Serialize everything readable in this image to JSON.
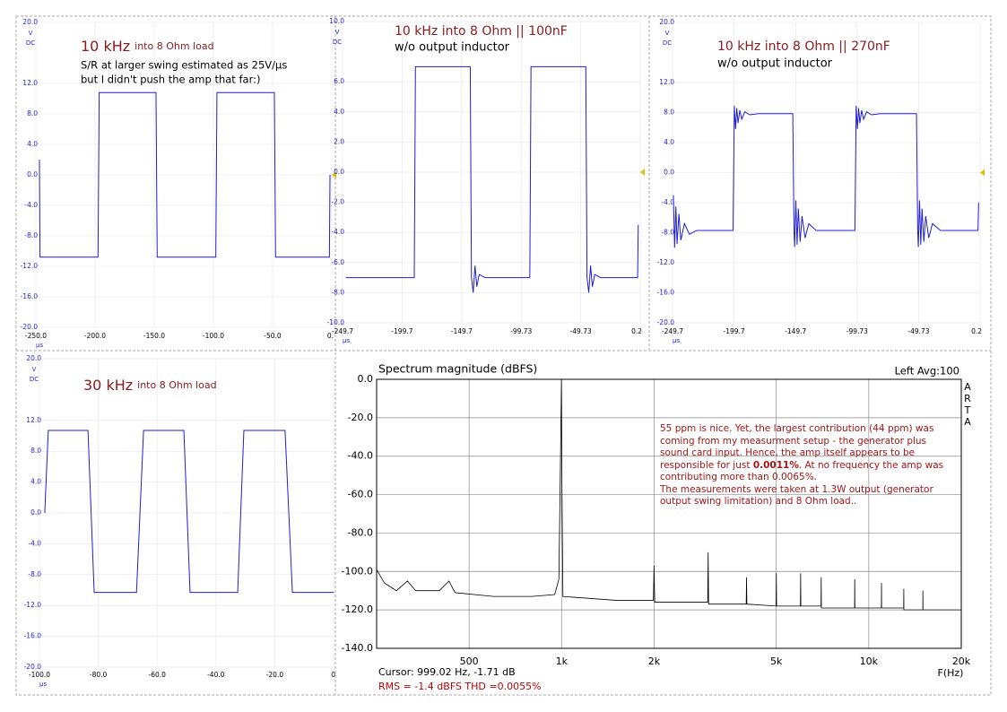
{
  "chart_data": [
    {
      "type": "line",
      "title": [
        "10 kHz",
        "into 8 Ohm load"
      ],
      "subtitle": [
        "S/R at larger swing estimated as 25V/µs",
        "but I didn't push the amp that far:)"
      ],
      "y_unit": [
        "V",
        "DC"
      ],
      "x_unit": "µs",
      "xlim": [
        -250,
        0
      ],
      "ylim": [
        -20,
        20
      ],
      "xticks": [
        {
          "value": -250,
          "label": "-250.0"
        },
        {
          "value": -200,
          "label": "-200.0"
        },
        {
          "value": -150,
          "label": "-150.0"
        },
        {
          "value": -100,
          "label": "-100.0"
        },
        {
          "value": -50,
          "label": "-50.0"
        },
        {
          "value": 0,
          "label": "0."
        }
      ],
      "yticks": [
        {
          "value": 20,
          "label": "20.0"
        },
        {
          "value": 12,
          "label": "12.0"
        },
        {
          "value": 8,
          "label": "8.0"
        },
        {
          "value": 4,
          "label": "4.0"
        },
        {
          "value": 0,
          "label": "0.0"
        },
        {
          "value": -4,
          "label": "-4.0"
        },
        {
          "value": -8,
          "label": "-8.0"
        },
        {
          "value": -12,
          "label": "-12.0"
        },
        {
          "value": -16,
          "label": "-16.0"
        },
        {
          "value": -20,
          "label": "-20.0"
        }
      ],
      "series": [
        {
          "color": "#1f1fd0",
          "x": [
            -247,
            -246.5,
            -197.5,
            -196.5,
            -148.5,
            -147.5,
            -98,
            -97,
            -48.5,
            -47.5,
            -2,
            -1.5
          ],
          "values": [
            2,
            -10.8,
            -10.8,
            10.8,
            10.8,
            -10.8,
            -10.8,
            10.8,
            10.8,
            -10.8,
            -10.8,
            0
          ]
        }
      ]
    },
    {
      "type": "line",
      "title": [
        "10 kHz into 8 Ohm || 100nF"
      ],
      "subtitle": [
        "w/o output inductor"
      ],
      "y_unit": [
        "V",
        "DC"
      ],
      "x_unit": "µs",
      "xlim": [
        -249.7,
        0.2
      ],
      "ylim": [
        -10,
        10
      ],
      "xticks": [
        -249.7,
        -199.7,
        -149.7,
        -99.73,
        -49.73,
        0.2
      ],
      "yticks": [
        {
          "value": 10,
          "label": "10.0"
        },
        {
          "value": 6,
          "label": "6.0"
        },
        {
          "value": 4,
          "label": "4.0"
        },
        {
          "value": 2,
          "label": "2.0"
        },
        {
          "value": 0,
          "label": "0.0"
        },
        {
          "value": -2,
          "label": "-2.0"
        },
        {
          "value": -4,
          "label": "-4.0"
        },
        {
          "value": -6,
          "label": "-6.0"
        },
        {
          "value": -8,
          "label": "-8.0"
        },
        {
          "value": -10,
          "label": "-10.0"
        }
      ],
      "series": [
        {
          "color": "#1f1fd0",
          "x": [
            -247,
            -246,
            -189.5,
            -188.5,
            -142.5,
            -141.5,
            -140,
            -138.5,
            -137,
            -135,
            -130,
            -92.5,
            -91.5,
            -45.5,
            -44.5,
            -43,
            -41.5,
            -40,
            -38,
            -33,
            -2,
            -1.5
          ],
          "values": [
            -7,
            -7,
            -7,
            7,
            7,
            -7,
            -8,
            -6.2,
            -7.6,
            -6.8,
            -7,
            -7,
            7,
            7,
            -7,
            -8,
            -6.2,
            -7.6,
            -6.8,
            -7,
            -7,
            -3.5
          ]
        }
      ]
    },
    {
      "type": "line",
      "title": [
        "10 kHz into 8 Ohm || 270nF"
      ],
      "subtitle": [
        "w/o output inductor"
      ],
      "y_unit": [
        "V",
        "DC"
      ],
      "x_unit": "µs",
      "xlim": [
        -249.7,
        0.2
      ],
      "ylim": [
        -20,
        20
      ],
      "xticks": [
        -249.7,
        -199.7,
        -149.7,
        -99.73,
        -49.73,
        0.2
      ],
      "yticks": [
        {
          "value": 20,
          "label": "20.0"
        },
        {
          "value": 12,
          "label": "12.0"
        },
        {
          "value": 8,
          "label": "8.0"
        },
        {
          "value": 4,
          "label": "4.0"
        },
        {
          "value": 0,
          "label": "0.0"
        },
        {
          "value": -4,
          "label": "-4.0"
        },
        {
          "value": -8,
          "label": "-8.0"
        },
        {
          "value": -12,
          "label": "-12.0"
        },
        {
          "value": -16,
          "label": "-16.0"
        },
        {
          "value": -20,
          "label": "-20.0"
        }
      ],
      "series": [
        {
          "color": "#1f1fd0",
          "x": [
            -249,
            -248,
            -247,
            -246,
            -244.5,
            -243,
            -240,
            -236,
            -230,
            -200.5,
            -199.5,
            -198.5,
            -197.5,
            -196.5,
            -195,
            -193.5,
            -191,
            -187,
            -180,
            -152,
            -151,
            -150.5,
            -149.5,
            -148.5,
            -147.5,
            -146,
            -144.5,
            -142,
            -139,
            -133,
            -101.5,
            -100.5,
            -99.5,
            -98.5,
            -97.5,
            -96,
            -94.5,
            -92,
            -88,
            -81,
            -51.5,
            -50.5,
            -50,
            -49,
            -48,
            -47,
            -45.5,
            -44,
            -41.5,
            -38.5,
            -32,
            -1.5,
            -1
          ],
          "values": [
            -3,
            -10,
            -4.5,
            -9.5,
            -5.5,
            -9,
            -6.8,
            -8.2,
            -7.7,
            -7.7,
            8.9,
            5.8,
            8.6,
            6.6,
            8.3,
            7.1,
            8.1,
            7.7,
            7.85,
            7.85,
            -7.7,
            -9.9,
            -3.7,
            -9.6,
            -4.8,
            -9.2,
            -5.8,
            -8.7,
            -6.8,
            -7.7,
            -7.7,
            8.9,
            5.8,
            8.6,
            6.6,
            8.3,
            7.1,
            8.1,
            7.7,
            7.85,
            7.85,
            -7.7,
            -9.9,
            -3.7,
            -9.6,
            -4.8,
            -9.2,
            -5.8,
            -8.7,
            -6.8,
            -7.7,
            -7.7,
            -4
          ]
        }
      ]
    },
    {
      "type": "line",
      "title": [
        "30 kHz",
        "into 8 Ohm load"
      ],
      "y_unit": [
        "V",
        "DC"
      ],
      "x_unit": "µs",
      "xlim": [
        -100,
        0
      ],
      "ylim": [
        -20,
        20
      ],
      "xticks": [
        {
          "value": -100,
          "label": "-100.0"
        },
        {
          "value": -80,
          "label": "-80.0"
        },
        {
          "value": -60,
          "label": "-60.0"
        },
        {
          "value": -40,
          "label": "-40.0"
        },
        {
          "value": -20,
          "label": "-20.0"
        },
        0
      ],
      "yticks": [
        {
          "value": 20,
          "label": "20.0"
        },
        {
          "value": 12,
          "label": "12.0"
        },
        {
          "value": 8,
          "label": "8.0"
        },
        {
          "value": 4,
          "label": "4.0"
        },
        {
          "value": 0,
          "label": "0.0"
        },
        {
          "value": -4,
          "label": "-4.0"
        },
        {
          "value": -8,
          "label": "-8.0"
        },
        {
          "value": -12,
          "label": "-12.0"
        },
        {
          "value": -16,
          "label": "-16.0"
        },
        {
          "value": -20,
          "label": "-20.0"
        }
      ],
      "series": [
        {
          "color": "#1f1fd0",
          "x": [
            -98.2,
            -97,
            -83.5,
            -81.4,
            -67,
            -64.6,
            -50.9,
            -48.8,
            -32.6,
            -30.5,
            -16.5,
            -14,
            0
          ],
          "values": [
            0,
            10.7,
            10.7,
            -10.3,
            -10.3,
            10.7,
            10.7,
            -10.3,
            -10.3,
            10.7,
            10.7,
            -10.3,
            -10.3
          ]
        }
      ]
    },
    {
      "type": "line",
      "title": [
        "Spectrum magnitude (dBFS)"
      ],
      "legend_text": "Left  Avg:100",
      "side_text": [
        "A",
        "R",
        "T",
        "A"
      ],
      "x_label": "F(Hz)",
      "xscale": "log",
      "grid": true,
      "cursor_text": "Cursor: 999.02 Hz, -1.71 dB",
      "rms_text": "RMS =   -1.4 dBFS  THD =0.0055%",
      "annotation": [
        "55 ppm is nice.  Yet, the largest contribution (44 ppm) was",
        "coming from my measurment setup - the generator plus",
        "sound card input.  Hence, the amp itself appears to be",
        [
          "responsible for just ",
          "0.0011%",
          ".  At no frequency the amp was"
        ],
        "contributing more than 0.0065%.",
        "The measurements were taken at 1.3W output (generator",
        "output swing limitation) and 8 Ohm load.."
      ],
      "xlim": [
        250,
        20000
      ],
      "ylim": [
        -140,
        0
      ],
      "xticks": [
        500,
        {
          "value": 1000,
          "label": "1k"
        },
        {
          "value": 2000,
          "label": "2k"
        },
        {
          "value": 5000,
          "label": "5k"
        },
        {
          "value": 10000,
          "label": "10k"
        },
        {
          "value": 20000,
          "label": "20k"
        }
      ],
      "yticks": [
        {
          "value": 0,
          "label": "0.0"
        },
        {
          "value": -20,
          "label": "-20.0"
        },
        {
          "value": -40,
          "label": "-40.0"
        },
        {
          "value": -60,
          "label": "-60.0"
        },
        {
          "value": -80,
          "label": "-80.0"
        },
        {
          "value": -100,
          "label": "-100.0"
        },
        {
          "value": -120,
          "label": "-120.0"
        },
        {
          "value": -140,
          "label": "-140.0"
        }
      ],
      "series": [
        {
          "color": "#000000",
          "x": [
            250,
            265,
            290,
            315,
            335,
            400,
            430,
            450,
            600,
            800,
            950,
            980,
            995,
            999,
            1003,
            1010,
            1500,
            1990,
            2000,
            2010,
            2990,
            3000,
            3010,
            3990,
            4000,
            4010,
            4990,
            5000,
            5010,
            5990,
            6000,
            6010,
            6990,
            7000,
            7010,
            8990,
            9000,
            9010,
            10990,
            11000,
            11010,
            12990,
            13000,
            13010,
            14990,
            15000,
            15010,
            20000
          ],
          "values": [
            -99,
            -106,
            -110,
            -105,
            -110,
            -110,
            -105,
            -111,
            -113,
            -113,
            -112,
            -104,
            -25,
            0,
            -60,
            -113,
            -115,
            -115,
            -97,
            -116,
            -116,
            -90,
            -117,
            -117,
            -103,
            -117,
            -118,
            -101,
            -118,
            -118,
            -101,
            -118,
            -118,
            -103,
            -119,
            -119,
            -104,
            -119,
            -119,
            -106,
            -119,
            -119,
            -109,
            -120,
            -120,
            -110,
            -120,
            -120
          ]
        }
      ]
    }
  ]
}
